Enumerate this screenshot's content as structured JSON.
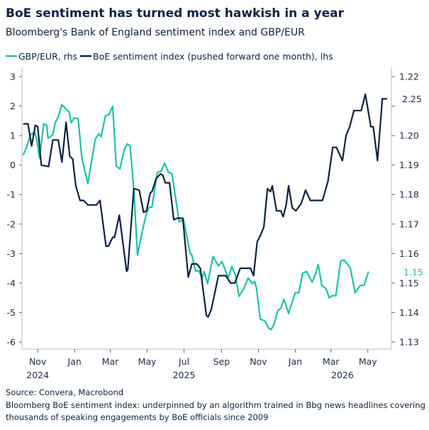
{
  "chart_data": {
    "type": "line",
    "title": "BoE sentiment has turned most hawkish in a year",
    "subtitle": "Bloomberg's Bank of England sentiment index and GBP/EUR",
    "xlim": [
      "2024-10-06",
      "2026-06-09"
    ],
    "x_ticks": [
      {
        "date": "2024-11-01",
        "label": "Nov",
        "year": "2024"
      },
      {
        "date": "2025-01-01",
        "label": "Jan"
      },
      {
        "date": "2025-03-01",
        "label": "Mar"
      },
      {
        "date": "2025-05-01",
        "label": "May"
      },
      {
        "date": "2025-07-01",
        "label": "Jul",
        "year": "2025"
      },
      {
        "date": "2025-09-01",
        "label": "Sep"
      },
      {
        "date": "2025-11-01",
        "label": "Nov"
      },
      {
        "date": "2026-01-01",
        "label": "Jan"
      },
      {
        "date": "2026-03-01",
        "label": "Mar"
      },
      {
        "date": "2026-05-01",
        "label": "May"
      }
    ],
    "year_labels": [
      {
        "date": "2024-11-01",
        "label": "2024"
      },
      {
        "date": "2025-07-01",
        "label": "2025"
      },
      {
        "date": "2026-03-20",
        "label": "2026"
      }
    ],
    "left_axis": {
      "ylim": [
        -6.2,
        3
      ],
      "ticks": [
        "3",
        "2",
        "1",
        "0",
        "-1",
        "-2",
        "-3",
        "-4",
        "-5",
        "-6"
      ]
    },
    "right_axis": {
      "ylim": [
        1.128,
        1.22
      ],
      "ticks": [
        "1.22",
        "1.21",
        "1.20",
        "1.19",
        "1.18",
        "1.17",
        "1.16",
        "1.15",
        "1.14",
        "1.13"
      ]
    },
    "grid": false,
    "legend_position": "top-left",
    "series": [
      {
        "name": "GBP/EUR, rhs",
        "axis": "right",
        "color": "#1cc2a6",
        "end_label": "1.15",
        "points": [
          [
            "2024-10-08",
            1.1934
          ],
          [
            "2024-10-14",
            1.1963
          ],
          [
            "2024-10-20",
            1.2003
          ],
          [
            "2024-10-27",
            1.2011
          ],
          [
            "2024-10-30",
            1.1991
          ],
          [
            "2024-11-04",
            1.1924
          ],
          [
            "2024-11-11",
            1.204
          ],
          [
            "2024-11-16",
            1.2035
          ],
          [
            "2024-11-18",
            1.1991
          ],
          [
            "2024-11-26",
            1.2003
          ],
          [
            "2024-11-30",
            1.2044
          ],
          [
            "2024-12-05",
            1.2064
          ],
          [
            "2024-12-11",
            1.2105
          ],
          [
            "2024-12-17",
            1.2092
          ],
          [
            "2024-12-23",
            1.208
          ],
          [
            "2024-12-26",
            1.2044
          ],
          [
            "2025-01-01",
            1.2061
          ],
          [
            "2025-01-07",
            1.2056
          ],
          [
            "2025-01-13",
            1.1924
          ],
          [
            "2025-01-23",
            1.1837
          ],
          [
            "2025-02-04",
            1.1987
          ],
          [
            "2025-02-10",
            1.2006
          ],
          [
            "2025-02-14",
            1.1996
          ],
          [
            "2025-02-21",
            1.2068
          ],
          [
            "2025-02-27",
            1.2071
          ],
          [
            "2025-03-05",
            1.21
          ],
          [
            "2025-03-11",
            1.1895
          ],
          [
            "2025-03-17",
            1.1888
          ],
          [
            "2025-03-24",
            1.1951
          ],
          [
            "2025-03-29",
            1.1972
          ],
          [
            "2025-04-03",
            1.1965
          ],
          [
            "2025-04-09",
            1.1818
          ],
          [
            "2025-04-15",
            1.1594
          ],
          [
            "2025-04-22",
            1.1667
          ],
          [
            "2025-04-30",
            1.1739
          ],
          [
            "2025-05-04",
            1.1756
          ],
          [
            "2025-05-09",
            1.1758
          ],
          [
            "2025-05-18",
            1.1876
          ],
          [
            "2025-05-24",
            1.1878
          ],
          [
            "2025-05-30",
            1.1907
          ],
          [
            "2025-06-05",
            1.1876
          ],
          [
            "2025-06-11",
            1.1871
          ],
          [
            "2025-06-23",
            1.1708
          ],
          [
            "2025-06-30",
            1.1715
          ],
          [
            "2025-07-11",
            1.1602
          ],
          [
            "2025-07-14",
            1.1594
          ],
          [
            "2025-07-20",
            1.1541
          ],
          [
            "2025-07-26",
            1.1541
          ],
          [
            "2025-07-31",
            1.1515
          ],
          [
            "2025-08-03",
            1.1539
          ],
          [
            "2025-08-09",
            1.1498
          ],
          [
            "2025-08-18",
            1.159
          ],
          [
            "2025-08-27",
            1.1558
          ],
          [
            "2025-09-02",
            1.1573
          ],
          [
            "2025-09-12",
            1.1517
          ],
          [
            "2025-09-18",
            1.1556
          ],
          [
            "2025-09-24",
            1.1527
          ],
          [
            "2025-09-30",
            1.1455
          ],
          [
            "2025-10-08",
            1.1481
          ],
          [
            "2025-10-15",
            1.1517
          ],
          [
            "2025-10-22",
            1.1498
          ],
          [
            "2025-10-26",
            1.1505
          ],
          [
            "2025-10-29",
            1.1481
          ],
          [
            "2025-11-04",
            1.1378
          ],
          [
            "2025-11-12",
            1.1371
          ],
          [
            "2025-11-18",
            1.1347
          ],
          [
            "2025-11-22",
            1.1342
          ],
          [
            "2025-11-27",
            1.1361
          ],
          [
            "2025-12-03",
            1.1407
          ],
          [
            "2025-12-08",
            1.1414
          ],
          [
            "2025-12-13",
            1.1445
          ],
          [
            "2025-12-21",
            1.1397
          ],
          [
            "2026-01-01",
            1.1467
          ],
          [
            "2026-01-07",
            1.1467
          ],
          [
            "2026-01-13",
            1.1534
          ],
          [
            "2026-01-20",
            1.1539
          ],
          [
            "2026-01-29",
            1.1503
          ],
          [
            "2026-02-04",
            1.1534
          ],
          [
            "2026-02-08",
            1.1563
          ],
          [
            "2026-02-14",
            1.1491
          ],
          [
            "2026-02-21",
            1.1481
          ],
          [
            "2026-02-26",
            1.145
          ],
          [
            "2026-03-03",
            1.1457
          ],
          [
            "2026-03-09",
            1.1457
          ],
          [
            "2026-03-17",
            1.1575
          ],
          [
            "2026-03-23",
            1.1578
          ],
          [
            "2026-04-02",
            1.1551
          ],
          [
            "2026-04-10",
            1.1467
          ],
          [
            "2026-04-18",
            1.1491
          ],
          [
            "2026-04-25",
            1.1493
          ],
          [
            "2026-05-02",
            1.1539
          ]
        ]
      },
      {
        "name": "BoE sentiment index (pushed forward one month), lhs",
        "axis": "left",
        "color": "#0b2240",
        "end_label": "2.25",
        "points": [
          [
            "2024-10-08",
            1.4
          ],
          [
            "2024-10-16",
            1.4
          ],
          [
            "2024-10-22",
            0.65
          ],
          [
            "2024-10-28",
            1.35
          ],
          [
            "2024-11-01",
            1.3
          ],
          [
            "2024-11-07",
            0.0
          ],
          [
            "2024-11-19",
            -0.05
          ],
          [
            "2024-11-26",
            0.85
          ],
          [
            "2024-12-05",
            0.85
          ],
          [
            "2024-12-11",
            0.1
          ],
          [
            "2024-12-18",
            1.45
          ],
          [
            "2024-12-24",
            0.3
          ],
          [
            "2024-12-29",
            0.2
          ],
          [
            "2025-01-03",
            -0.7
          ],
          [
            "2025-01-10",
            -1.2
          ],
          [
            "2025-01-16",
            -1.2
          ],
          [
            "2025-01-23",
            -1.35
          ],
          [
            "2025-02-06",
            -1.35
          ],
          [
            "2025-02-12",
            -1.2
          ],
          [
            "2025-02-22",
            -2.75
          ],
          [
            "2025-02-26",
            -2.75
          ],
          [
            "2025-03-05",
            -2.45
          ],
          [
            "2025-03-08",
            -2.45
          ],
          [
            "2025-03-16",
            -1.7
          ],
          [
            "2025-03-28",
            -3.6
          ],
          [
            "2025-03-30",
            -3.55
          ],
          [
            "2025-04-09",
            -0.8
          ],
          [
            "2025-04-18",
            -0.85
          ],
          [
            "2025-04-25",
            -1.6
          ],
          [
            "2025-04-30",
            -1.55
          ],
          [
            "2025-05-06",
            -0.95
          ],
          [
            "2025-05-09",
            -0.9
          ],
          [
            "2025-05-16",
            -0.45
          ],
          [
            "2025-05-23",
            -0.3
          ],
          [
            "2025-05-27",
            -0.35
          ],
          [
            "2025-05-31",
            -0.6
          ],
          [
            "2025-06-07",
            -0.6
          ],
          [
            "2025-06-14",
            -1.85
          ],
          [
            "2025-06-20",
            -1.8
          ],
          [
            "2025-06-29",
            -1.8
          ],
          [
            "2025-07-08",
            -3.8
          ],
          [
            "2025-07-14",
            -3.35
          ],
          [
            "2025-07-22",
            -3.35
          ],
          [
            "2025-07-28",
            -3.5
          ],
          [
            "2025-08-07",
            -5.1
          ],
          [
            "2025-08-10",
            -5.15
          ],
          [
            "2025-08-15",
            -4.9
          ],
          [
            "2025-08-27",
            -3.75
          ],
          [
            "2025-09-08",
            -3.75
          ],
          [
            "2025-09-16",
            -4.0
          ],
          [
            "2025-09-23",
            -4.0
          ],
          [
            "2025-10-02",
            -3.5
          ],
          [
            "2025-10-19",
            -3.5
          ],
          [
            "2025-10-24",
            -3.75
          ],
          [
            "2025-10-30",
            -2.6
          ],
          [
            "2025-11-04",
            -2.4
          ],
          [
            "2025-11-10",
            -2.1
          ],
          [
            "2025-11-16",
            -0.8
          ],
          [
            "2025-11-21",
            -0.9
          ],
          [
            "2025-11-24",
            -0.7
          ],
          [
            "2025-12-01",
            -1.55
          ],
          [
            "2025-12-08",
            -1.55
          ],
          [
            "2025-12-12",
            -1.75
          ],
          [
            "2025-12-17",
            -1.35
          ],
          [
            "2025-12-21",
            -0.7
          ],
          [
            "2025-12-27",
            -1.45
          ],
          [
            "2026-01-02",
            -1.55
          ],
          [
            "2026-01-11",
            -1.3
          ],
          [
            "2026-01-18",
            -0.85
          ],
          [
            "2026-01-26",
            -1.2
          ],
          [
            "2026-02-15",
            -1.2
          ],
          [
            "2026-02-24",
            -0.55
          ],
          [
            "2026-03-04",
            0.6
          ],
          [
            "2026-03-10",
            0.6
          ],
          [
            "2026-03-20",
            0.15
          ],
          [
            "2026-03-26",
            1.0
          ],
          [
            "2026-04-01",
            1.3
          ],
          [
            "2026-04-08",
            1.85
          ],
          [
            "2026-04-20",
            1.85
          ],
          [
            "2026-04-27",
            2.4
          ],
          [
            "2026-05-06",
            1.3
          ],
          [
            "2026-05-10",
            1.3
          ],
          [
            "2026-05-17",
            0.15
          ],
          [
            "2026-05-25",
            2.25
          ],
          [
            "2026-06-02",
            2.25
          ]
        ]
      }
    ],
    "source": "Source: Convera, Macrobond",
    "notes": [
      "Bloomberg BoE sentiment index: underpinned by an algorithm trained in Bbg news headlines covering",
      "thousands of speaking engagements by BoE officials since 2009"
    ]
  }
}
